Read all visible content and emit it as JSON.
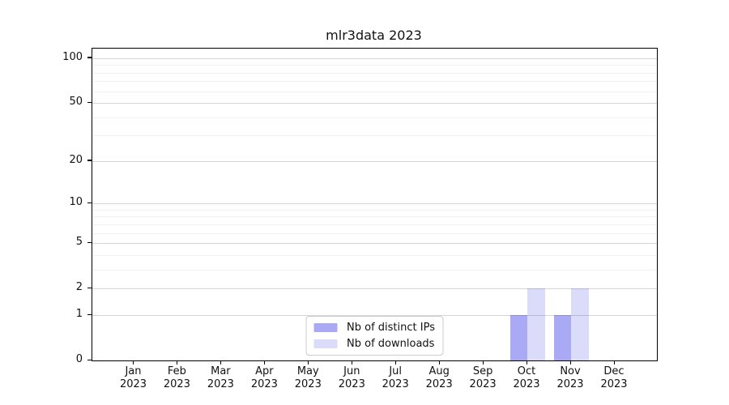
{
  "chart_data": {
    "type": "bar",
    "title": "mlr3data 2023",
    "categories": [
      "Jan",
      "Feb",
      "Mar",
      "Apr",
      "May",
      "Jun",
      "Jul",
      "Aug",
      "Sep",
      "Oct",
      "Nov",
      "Dec"
    ],
    "category_year": "2023",
    "series": [
      {
        "name": "Nb of distinct IPs",
        "color": "#a9a9f6",
        "values": [
          0,
          0,
          0,
          0,
          0,
          0,
          0,
          0,
          0,
          1,
          1,
          0
        ]
      },
      {
        "name": "Nb of downloads",
        "color": "#dbdbfa",
        "values": [
          0,
          0,
          0,
          0,
          0,
          0,
          0,
          0,
          0,
          2,
          2,
          0
        ]
      }
    ],
    "xlabel": "",
    "ylabel": "",
    "y_scale": "log1p",
    "ylim": [
      0,
      115
    ],
    "y_major_ticks": [
      0,
      1,
      2,
      5,
      10,
      20,
      50,
      100
    ],
    "y_minor_ticks": [
      3,
      4,
      6,
      7,
      8,
      9,
      30,
      40,
      60,
      70,
      80,
      90
    ],
    "grid": "horizontal",
    "legend_position": "lower center inside",
    "background_color": "#ffffff",
    "text_color": "#111111"
  }
}
